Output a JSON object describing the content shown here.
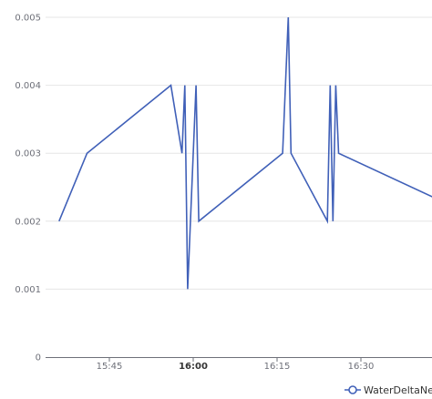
{
  "chart_data": {
    "type": "line",
    "series": [
      {
        "name": "WaterDeltaNew",
        "color": "#4060b8",
        "points": [
          {
            "x": "15:36",
            "y": 0.002
          },
          {
            "x": "15:41",
            "y": 0.003
          },
          {
            "x": "15:56",
            "y": 0.004
          },
          {
            "x": "15:58",
            "y": 0.003
          },
          {
            "x": "15:58:30",
            "y": 0.004
          },
          {
            "x": "15:59",
            "y": 0.001
          },
          {
            "x": "16:00:30",
            "y": 0.004
          },
          {
            "x": "16:01",
            "y": 0.002
          },
          {
            "x": "16:16",
            "y": 0.003
          },
          {
            "x": "16:17",
            "y": 0.005
          },
          {
            "x": "16:17:30",
            "y": 0.003
          },
          {
            "x": "16:24",
            "y": 0.002
          },
          {
            "x": "16:24:30",
            "y": 0.004
          },
          {
            "x": "16:25",
            "y": 0.002
          },
          {
            "x": "16:25:30",
            "y": 0.004
          },
          {
            "x": "16:26",
            "y": 0.003
          },
          {
            "x": "16:43",
            "y": 0.00235
          }
        ]
      }
    ],
    "y_ticks": [
      "0",
      "0.001",
      "0.002",
      "0.003",
      "0.004",
      "0.005"
    ],
    "ylim": [
      0,
      0.005
    ],
    "x_ticks": [
      {
        "label": "15:45",
        "major": false
      },
      {
        "label": "16:00",
        "major": true
      },
      {
        "label": "16:15",
        "major": false
      },
      {
        "label": "16:30",
        "major": false
      }
    ],
    "grid": true,
    "legend_position": "bottom-right"
  }
}
